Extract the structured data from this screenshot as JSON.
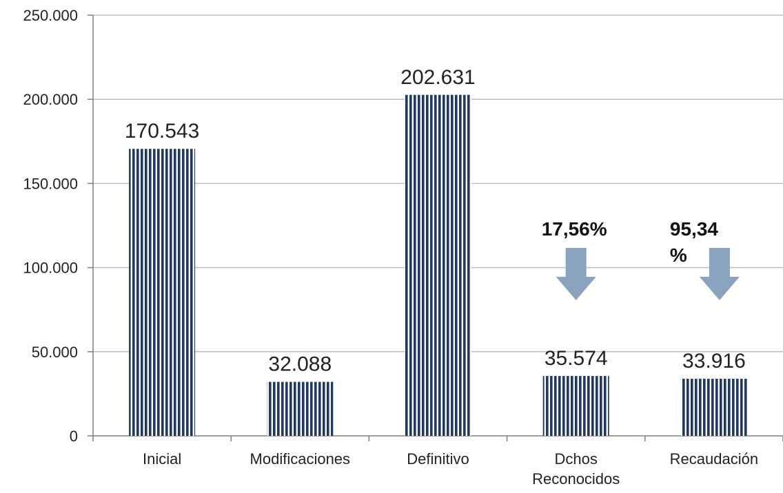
{
  "chart_data": {
    "type": "bar",
    "categories": [
      "Inicial",
      "Modificaciones",
      "Definitivo",
      "Dchos\nReconocidos",
      "Recaudación"
    ],
    "values": [
      170543,
      32088,
      202631,
      35574,
      33916
    ],
    "value_labels": [
      "170.543",
      "32.088",
      "202.631",
      "35.574",
      "33.916"
    ],
    "ylim": [
      0,
      250000
    ],
    "yticks": [
      0,
      50000,
      100000,
      150000,
      200000,
      250000
    ],
    "ytick_labels": [
      "0",
      "50.000",
      "100.000",
      "150.000",
      "200.000",
      "250.000"
    ],
    "grid": true,
    "legend": "none",
    "title": "",
    "xlabel": "",
    "ylabel": "",
    "annotations": [
      {
        "category_index": 3,
        "text": "17,56%",
        "arrow": "down"
      },
      {
        "category_index": 4,
        "text": "95,34\n%",
        "arrow": "down"
      }
    ],
    "colors": {
      "bar_stripe": "#1f3864",
      "bar_gap": "#ffffff",
      "arrow": "#8aa3bf",
      "grid": "#bfbfbf",
      "axis": "#7f7f7f"
    }
  }
}
